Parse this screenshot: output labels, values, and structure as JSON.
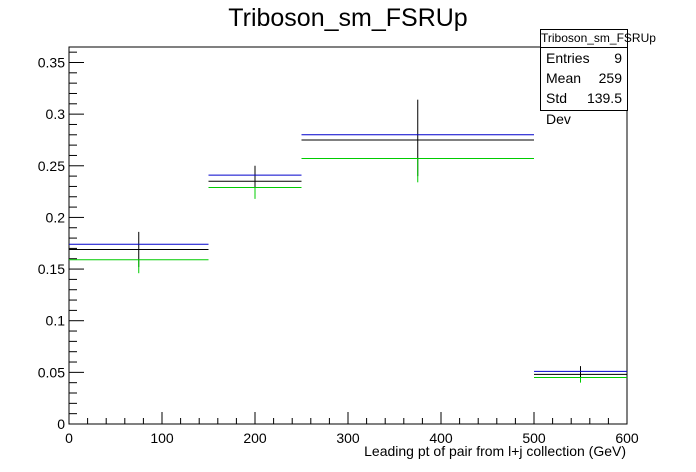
{
  "chart_data": {
    "type": "histogram",
    "title": "Triboson_sm_FSRUp",
    "xlabel": "Leading pt of pair from l+j collection (GeV)",
    "ylabel": "",
    "xlim": [
      0,
      600
    ],
    "ylim": [
      0,
      0.365
    ],
    "grid": false,
    "x_ticks": [
      0,
      100,
      200,
      300,
      400,
      500,
      600
    ],
    "y_ticks": [
      0,
      0.05,
      0.1,
      0.15,
      0.2,
      0.25,
      0.3,
      0.35
    ],
    "x_tick_labels": [
      "0",
      "100",
      "200",
      "300",
      "400",
      "500",
      "600"
    ],
    "y_tick_labels": [
      "0",
      "0.05",
      "0.1",
      "0.15",
      "0.2",
      "0.25",
      "0.3",
      "0.35"
    ],
    "bins": [
      [
        0,
        150
      ],
      [
        150,
        250
      ],
      [
        250,
        500
      ],
      [
        500,
        600
      ]
    ],
    "series": [
      {
        "color": "#000000",
        "values": [
          0.169,
          0.235,
          0.275,
          0.048
        ],
        "err_low": [
          0.152,
          0.22,
          0.24,
          0.042
        ],
        "err_high": [
          0.186,
          0.25,
          0.314,
          0.056
        ]
      },
      {
        "color": "#0000cc",
        "values": [
          0.174,
          0.241,
          0.28,
          0.051
        ]
      },
      {
        "color": "#00cc00",
        "values": [
          0.159,
          0.229,
          0.257,
          0.045
        ],
        "err_low": [
          0.146,
          0.218,
          0.234,
          0.04
        ],
        "err_high": [
          0.159,
          0.229,
          0.257,
          0.045
        ]
      }
    ]
  },
  "stats_box": {
    "title": "Triboson_sm_FSRUp",
    "entries_label": "Entries",
    "entries_value": "9",
    "mean_label": "Mean",
    "mean_value": "259",
    "stddev_label": "Std Dev",
    "stddev_value": "139.5"
  }
}
